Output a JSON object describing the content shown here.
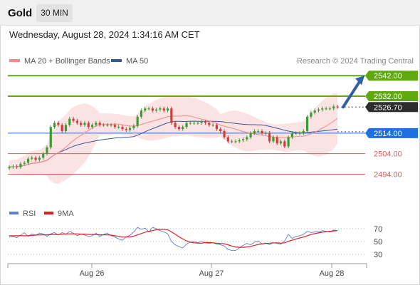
{
  "header": {
    "symbol": "Gold",
    "timeframe": "30 MIN",
    "timestamp": "Wednesday, August 28, 2024 1:34:16 AM CET"
  },
  "legend": {
    "ma20_label": "MA 20 + Bollinger Bands",
    "ma50_label": "MA 50",
    "copyright": "Research © 2024 Trading Central"
  },
  "rsi_legend": {
    "rsi_label": "RSI",
    "ma_label": "9MA"
  },
  "colors": {
    "resistance": "#5fa80f",
    "current": "#2d2d2d",
    "pivot": "#1e6fe0",
    "support": "#e05a5a",
    "ma20": "#f08a8a",
    "bollinger_fill": "#fcdede",
    "ma50": "#35579e",
    "candle_up": "#3a9b33",
    "candle_down": "#d43a3a",
    "rsi_line": "#5b7ed8",
    "rsi_ma": "#e02020",
    "arrow": "#2f5fa8"
  },
  "chart_data": [
    {
      "type": "candlestick",
      "title": "Gold",
      "timeframe": "30 MIN",
      "x_tick_labels": [
        "Aug 26",
        "Aug 27",
        "Aug 28"
      ],
      "y_range": [
        2488,
        2546
      ],
      "key_levels": [
        {
          "value": 2542.0,
          "label": "2542.00",
          "kind": "target"
        },
        {
          "value": 2532.0,
          "label": "2532.00",
          "kind": "resistance"
        },
        {
          "value": 2526.7,
          "label": "2526.70",
          "kind": "current"
        },
        {
          "value": 2514.0,
          "label": "2514.00",
          "kind": "pivot"
        },
        {
          "value": 2504.0,
          "label": "2504.00",
          "kind": "support"
        },
        {
          "value": 2494.0,
          "label": "2494.00",
          "kind": "support"
        }
      ],
      "close_series": [
        2497.5,
        2497.8,
        2497.5,
        2499,
        2499.5,
        2501.5,
        2502,
        2501,
        2502,
        2504,
        2507,
        2517,
        2519,
        2518,
        2515,
        2518,
        2521,
        2520,
        2519,
        2518,
        2519,
        2517,
        2518,
        2519,
        2518,
        2518,
        2518,
        2518,
        2517,
        2517,
        2516,
        2515.5,
        2516.5,
        2517.5,
        2522,
        2525,
        2526,
        2526,
        2525,
        2525.5,
        2526,
        2525,
        2526,
        2519,
        2517,
        2516,
        2517,
        2519,
        2519,
        2519,
        2519,
        2519.5,
        2519,
        2518,
        2518,
        2516,
        2515,
        2512,
        2510,
        2510,
        2510,
        2510.5,
        2511,
        2512,
        2514,
        2515,
        2515,
        2514,
        2514,
        2510,
        2512,
        2509,
        2510,
        2507.5,
        2512,
        2514,
        2514,
        2514,
        2515,
        2522,
        2524,
        2525,
        2525.5,
        2526,
        2526,
        2526,
        2527,
        2526.7
      ],
      "projection": {
        "from": 2526.7,
        "to": 2542.0
      }
    },
    {
      "type": "line",
      "title": "RSI",
      "y_tick_labels": [
        "70",
        "50",
        "30"
      ],
      "y_range": [
        20,
        80
      ],
      "series": [
        {
          "name": "RSI",
          "values": [
            57,
            58,
            56,
            60,
            64,
            58,
            62,
            60,
            63,
            62,
            58,
            62,
            64,
            60,
            64,
            61,
            66,
            63,
            59,
            62,
            60,
            58,
            59,
            63,
            58,
            61,
            63,
            59,
            57,
            54,
            52,
            57,
            60,
            65,
            72,
            69,
            71,
            65,
            72,
            70,
            67,
            65,
            62,
            50,
            45,
            42,
            40,
            46,
            49,
            50,
            48,
            50,
            48,
            47,
            48,
            46,
            45,
            43,
            38,
            36,
            36,
            40,
            44,
            47,
            45,
            49,
            51,
            46,
            48,
            45,
            48,
            47,
            46,
            51,
            61,
            55,
            58,
            59,
            61,
            66,
            64,
            65,
            65,
            67,
            66,
            65,
            68,
            67
          ]
        },
        {
          "name": "9MA",
          "values": [
            59,
            59,
            59,
            59,
            59,
            59,
            59.5,
            60,
            60.5,
            60.5,
            60.5,
            61,
            61,
            61,
            61.5,
            62,
            62,
            62,
            62,
            61.5,
            61.5,
            61,
            61,
            61,
            60.5,
            60.5,
            60.5,
            60,
            59,
            58,
            57,
            57,
            57.5,
            58.5,
            60.5,
            62.5,
            64.5,
            66,
            67,
            68.5,
            69,
            69,
            68.5,
            65,
            61.5,
            57.5,
            54,
            51,
            49,
            48,
            47.5,
            47.5,
            48.5,
            48.5,
            48,
            47.5,
            47,
            46.5,
            45,
            43,
            41.5,
            41,
            41,
            41.5,
            42.5,
            44,
            45.5,
            46.5,
            47,
            47.5,
            48,
            48,
            47.5,
            48,
            50.5,
            52,
            54,
            55.5,
            57,
            59,
            61,
            62.5,
            63.5,
            64.5,
            65.5,
            66,
            66.5,
            67
          ]
        }
      ]
    }
  ]
}
